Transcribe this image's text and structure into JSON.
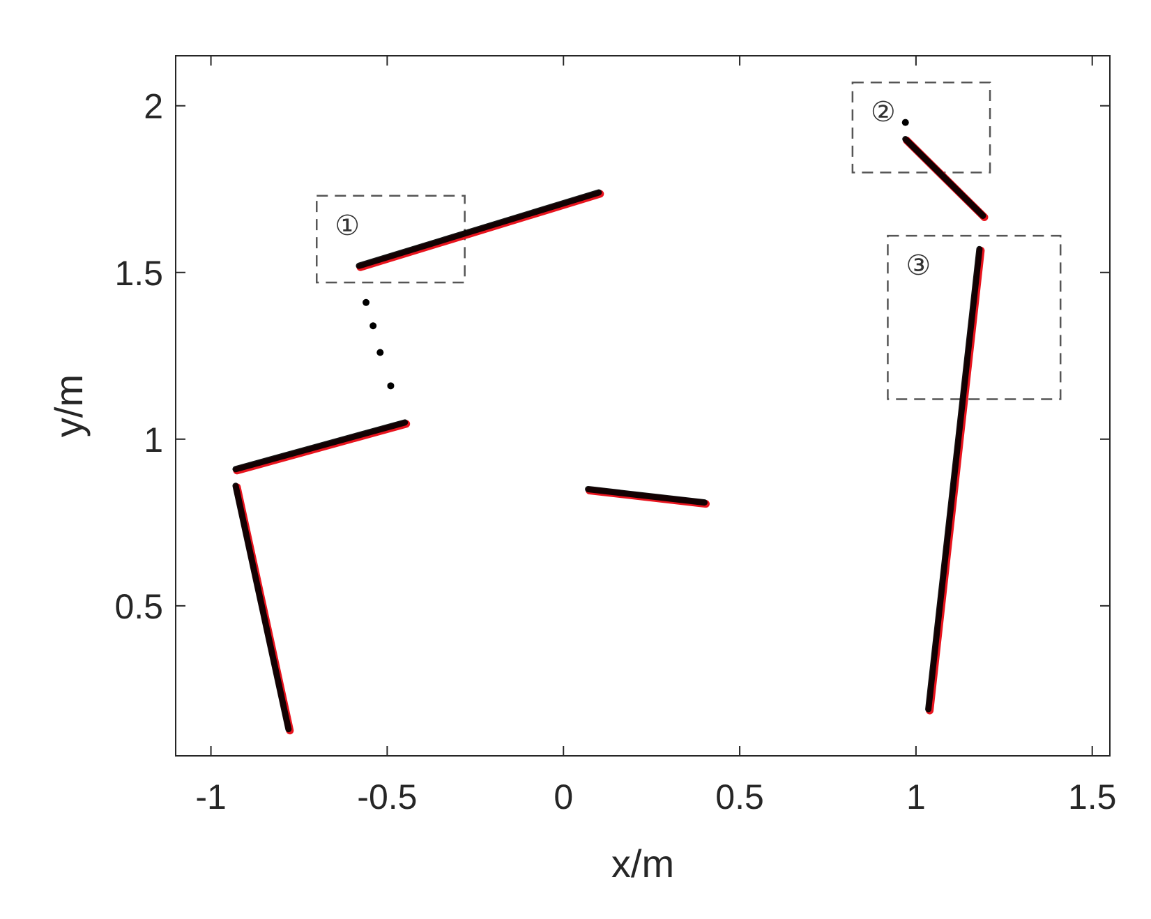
{
  "chart_data": {
    "type": "scatter",
    "title": "",
    "xlabel": "x/m",
    "ylabel": "y/m",
    "xlim": [
      -1.1,
      1.55
    ],
    "ylim": [
      0.05,
      2.15
    ],
    "xticks": [
      -1,
      -0.5,
      0,
      0.5,
      1,
      1.5
    ],
    "xtick_labels": [
      "-1",
      "-0.5",
      "0",
      "0.5",
      "1",
      "1.5"
    ],
    "yticks": [
      0.5,
      1,
      1.5,
      2
    ],
    "ytick_labels": [
      "0.5",
      "1",
      "1.5",
      "2"
    ],
    "grid": false,
    "legend": "none",
    "colors": {
      "fit": "#e8141e",
      "points": "#000000",
      "axes": "#262626",
      "boxes": "#555555"
    },
    "segments": [
      {
        "x": [
          -0.78,
          -0.93
        ],
        "y": [
          0.13,
          0.86
        ]
      },
      {
        "x": [
          -0.93,
          -0.45
        ],
        "y": [
          0.91,
          1.05
        ]
      },
      {
        "x": [
          -0.58,
          0.1
        ],
        "y": [
          1.52,
          1.74
        ]
      },
      {
        "x": [
          0.07,
          0.4
        ],
        "y": [
          0.85,
          0.81
        ]
      },
      {
        "x": [
          0.97,
          1.19
        ],
        "y": [
          1.9,
          1.67
        ]
      },
      {
        "x": [
          1.035,
          1.18
        ],
        "y": [
          0.19,
          1.57
        ]
      }
    ],
    "isolated_points": {
      "x": [
        -0.56,
        -0.54,
        -0.52,
        -0.49,
        0.97
      ],
      "y": [
        1.41,
        1.34,
        1.26,
        1.16,
        1.95
      ]
    },
    "boxes": [
      {
        "label": "①",
        "x": [
          -0.7,
          -0.28
        ],
        "y": [
          1.47,
          1.73
        ]
      },
      {
        "label": "②",
        "x": [
          0.82,
          1.21
        ],
        "y": [
          1.8,
          2.07
        ]
      },
      {
        "label": "③",
        "x": [
          0.92,
          1.41
        ],
        "y": [
          1.12,
          1.61
        ]
      }
    ]
  }
}
